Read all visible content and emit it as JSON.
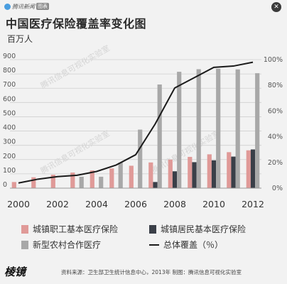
{
  "header": {
    "brand": "腾讯新闻",
    "brand_tag": "图表",
    "close_label": "✕"
  },
  "title": "中国医疗保险覆盖率变化图",
  "unit": "百万人",
  "watermarks": [
    "腾讯信息可视化实验室",
    "腾讯信息可视化实验室",
    "腾讯信息可视化实验室"
  ],
  "footer": {
    "logo": "棱镜",
    "source": "资料来源：卫生部卫生统计信息中心，2013年  制图：腾讯信息可视化实验室"
  },
  "colors": {
    "urban_employee": "#e09a98",
    "urban_resident": "#3a3f48",
    "rural_coop": "#a8a8a8",
    "total_line": "#1a1a1a"
  },
  "chart_data": {
    "type": "bar",
    "x": [
      2000,
      2001,
      2002,
      2003,
      2004,
      2005,
      2006,
      2007,
      2008,
      2009,
      2010,
      2011,
      2012
    ],
    "x_tick_labels": [
      "2000",
      "2002",
      "2004",
      "2006",
      "2008",
      "2010",
      "2012"
    ],
    "y_left_ticks": [
      "0",
      "100",
      "200",
      "300",
      "400",
      "500",
      "600",
      "700",
      "800",
      "900"
    ],
    "y_right_ticks": [
      "0%",
      "20%",
      "40%",
      "60%",
      "80%",
      "100%"
    ],
    "ylim_left": [
      0,
      900
    ],
    "ylim_right": [
      0,
      100
    ],
    "series": [
      {
        "name": "城镇职工基本医疗保险",
        "axis": "left",
        "values": [
          43,
          76,
          94,
          109,
          124,
          138,
          157,
          180,
          200,
          219,
          237,
          252,
          265
        ]
      },
      {
        "name": "城镇居民基本医疗保险",
        "axis": "left",
        "values": [
          null,
          null,
          null,
          null,
          null,
          null,
          null,
          43,
          118,
          182,
          195,
          221,
          271
        ]
      },
      {
        "name": "新型农村合作医疗",
        "axis": "left",
        "values": [
          null,
          null,
          null,
          80,
          80,
          179,
          410,
          726,
          815,
          833,
          836,
          832,
          805
        ]
      },
      {
        "name": "总体覆盖（％）",
        "axis": "right",
        "type": "line",
        "values": [
          4,
          7,
          9,
          10,
          13,
          18,
          26,
          50,
          78,
          86,
          94,
          95,
          98
        ]
      }
    ],
    "grid": true,
    "legend": "bottom"
  }
}
